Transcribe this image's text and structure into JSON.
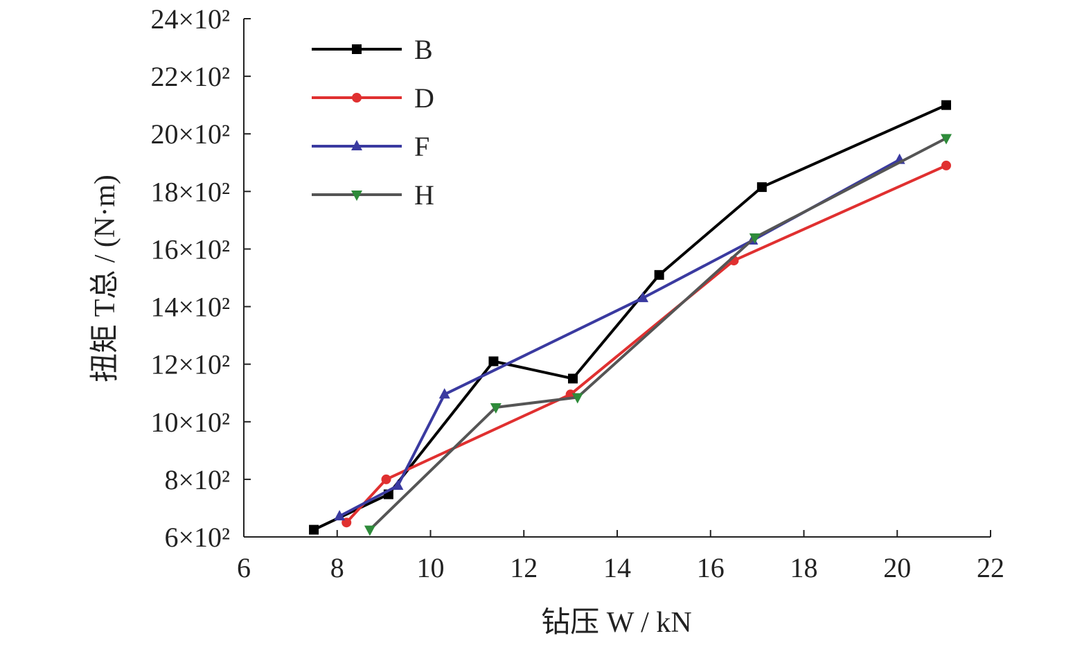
{
  "chart_data": {
    "type": "line",
    "title": "",
    "xlabel": "钻压 W / kN",
    "ylabel": "扭矩 T总 / (N·m)",
    "xlim": [
      6,
      22
    ],
    "ylim": [
      600,
      2400
    ],
    "x_ticks": [
      "6",
      "8",
      "10",
      "12",
      "14",
      "16",
      "18",
      "20",
      "22"
    ],
    "y_ticks": [
      "6×10²",
      "8×10²",
      "10×10²",
      "12×10²",
      "14×10²",
      "16×10²",
      "18×10²",
      "20×10²",
      "22×10²",
      "24×10²"
    ],
    "grid": false,
    "legend_position": "top-left",
    "series": [
      {
        "name": "B",
        "color": "#000000",
        "marker": "square",
        "points": [
          [
            7.5,
            625
          ],
          [
            9.1,
            748
          ],
          [
            11.35,
            1210
          ],
          [
            13.05,
            1150
          ],
          [
            14.9,
            1510
          ],
          [
            17.1,
            1815
          ],
          [
            21.05,
            2100
          ]
        ]
      },
      {
        "name": "D",
        "color": "#e03030",
        "marker": "circle",
        "points": [
          [
            8.2,
            650
          ],
          [
            9.05,
            800
          ],
          [
            13.0,
            1095
          ],
          [
            16.5,
            1560
          ],
          [
            21.05,
            1890
          ]
        ]
      },
      {
        "name": "F",
        "color": "#3a3aa0",
        "marker": "triangle-up",
        "points": [
          [
            8.05,
            672
          ],
          [
            9.3,
            778
          ],
          [
            10.3,
            1095
          ],
          [
            14.55,
            1430
          ],
          [
            16.9,
            1630
          ],
          [
            20.05,
            1910
          ]
        ]
      },
      {
        "name": "H",
        "color": "#555555",
        "markerColor": "#2e8b3a",
        "marker": "triangle-down",
        "points": [
          [
            8.7,
            625
          ],
          [
            11.4,
            1050
          ],
          [
            13.15,
            1085
          ],
          [
            16.95,
            1640
          ],
          [
            21.05,
            1985
          ]
        ]
      }
    ]
  }
}
